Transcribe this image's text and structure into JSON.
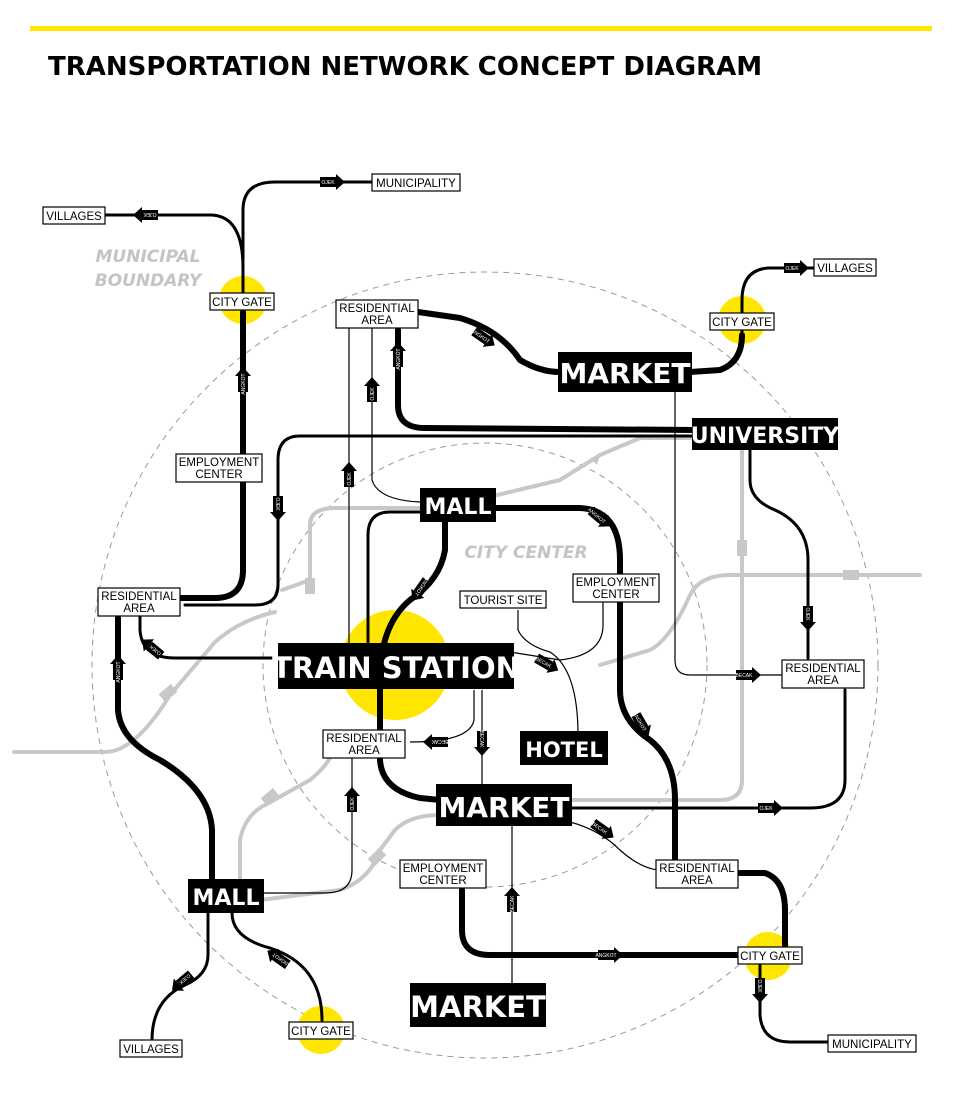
{
  "title": "TRANSPORTATION NETWORK CONCEPT DIAGRAM",
  "zones": {
    "municipal_boundary": [
      "MUNICIPAL",
      "BOUNDARY"
    ],
    "city_center": "CITY CENTER"
  },
  "colors": {
    "accent_bar": "#ffe600",
    "gate_highlight": "#ffe600",
    "primary_line": "#000000",
    "secondary_line": "#c8c8c8",
    "boundary_ring": "#9a9a9a"
  },
  "major_nodes": {
    "market_north": "MARKET",
    "university": "UNIVERSITY",
    "mall_center": "MALL",
    "train_station": "TRAIN STATION",
    "hotel": "HOTEL",
    "market_center": "MARKET",
    "mall_southwest": "MALL",
    "market_south": "MARKET"
  },
  "minor_nodes": {
    "villages_nw": [
      "VILLAGES"
    ],
    "municipality_n": [
      "MUNICIPALITY"
    ],
    "villages_ne": [
      "VILLAGES"
    ],
    "city_gate_nw": [
      "CITY GATE"
    ],
    "city_gate_ne": [
      "CITY GATE"
    ],
    "residential_north": [
      "RESIDENTIAL",
      "AREA"
    ],
    "employment_west": [
      "EMPLOYMENT",
      "CENTER"
    ],
    "residential_west": [
      "RESIDENTIAL",
      "AREA"
    ],
    "tourist_site": [
      "TOURIST SITE"
    ],
    "employment_center": [
      "EMPLOYMENT",
      "CENTER"
    ],
    "residential_east": [
      "RESIDENTIAL",
      "AREA"
    ],
    "residential_center": [
      "RESIDENTIAL",
      "AREA"
    ],
    "employment_south": [
      "EMPLOYMENT",
      "CENTER"
    ],
    "residential_southeast": [
      "RESIDENTIAL",
      "AREA"
    ],
    "city_gate_se": [
      "CITY GATE"
    ],
    "city_gate_s": [
      "CITY GATE"
    ],
    "villages_sw": [
      "VILLAGES"
    ],
    "municipality_se": [
      "MUNICIPALITY"
    ]
  },
  "arrow_labels": {
    "ojek": "OJEK",
    "angkot": "ANGKOT",
    "becak": "BECAK"
  }
}
